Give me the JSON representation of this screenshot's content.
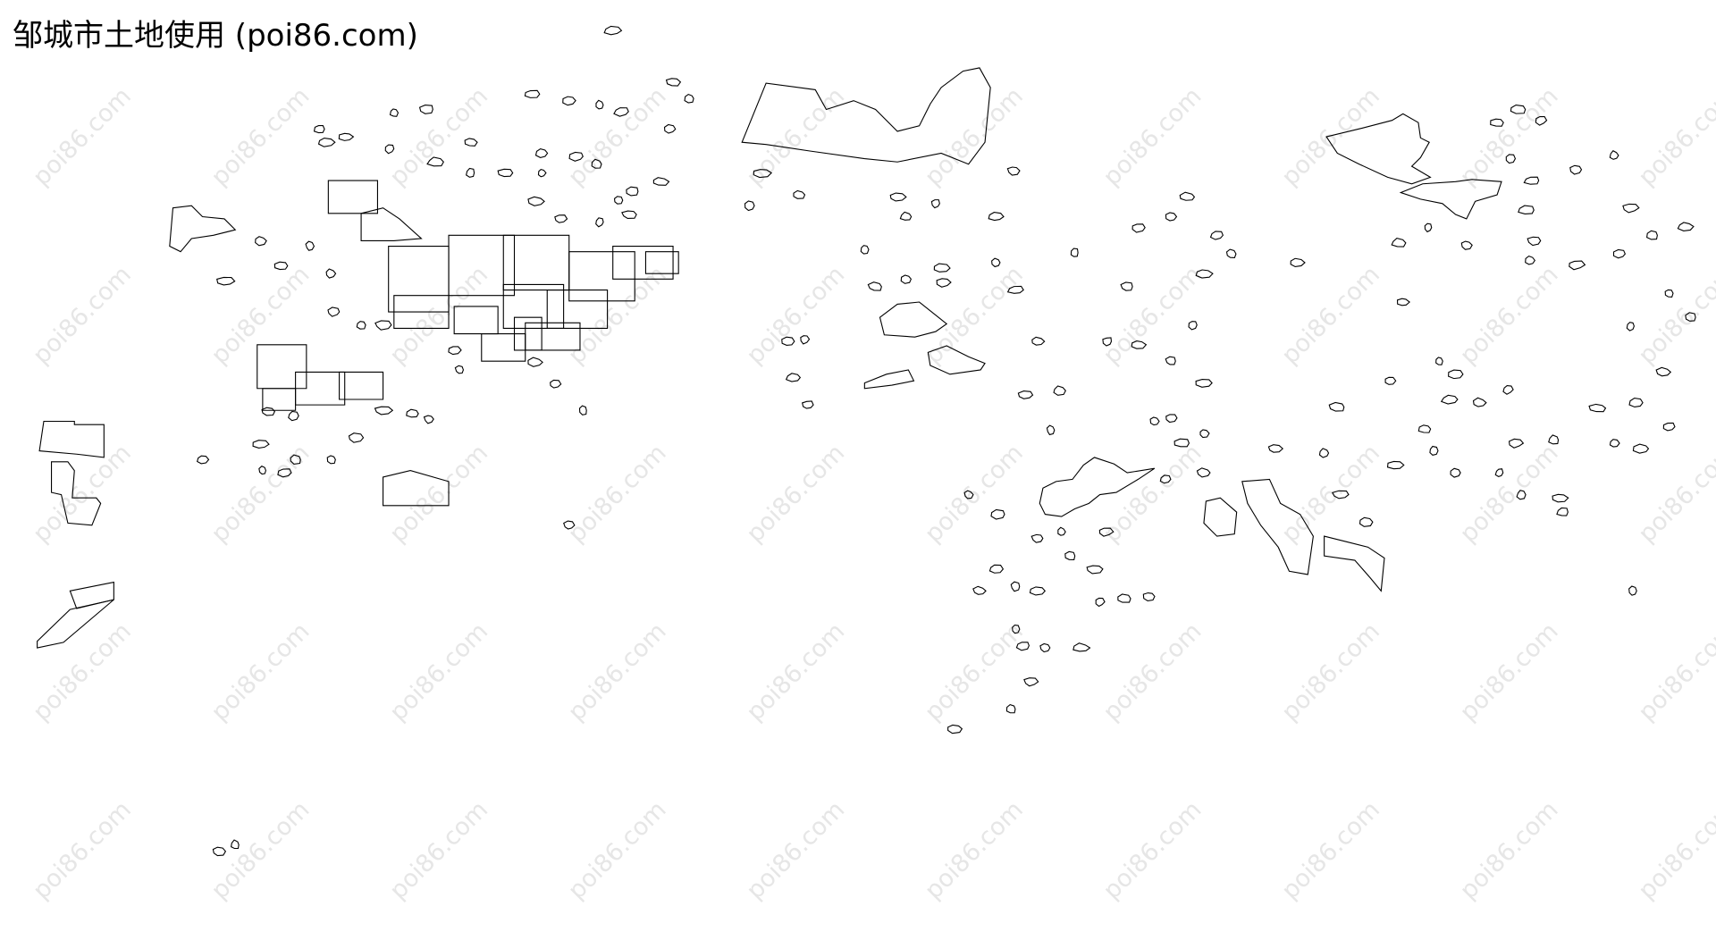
{
  "title": "邹城市土地使用 (poi86.com)",
  "watermark": "poi86.com",
  "colors": {
    "background": "#ffffff",
    "parcel_stroke": "#000000",
    "watermark": "#e6e6e6"
  }
}
